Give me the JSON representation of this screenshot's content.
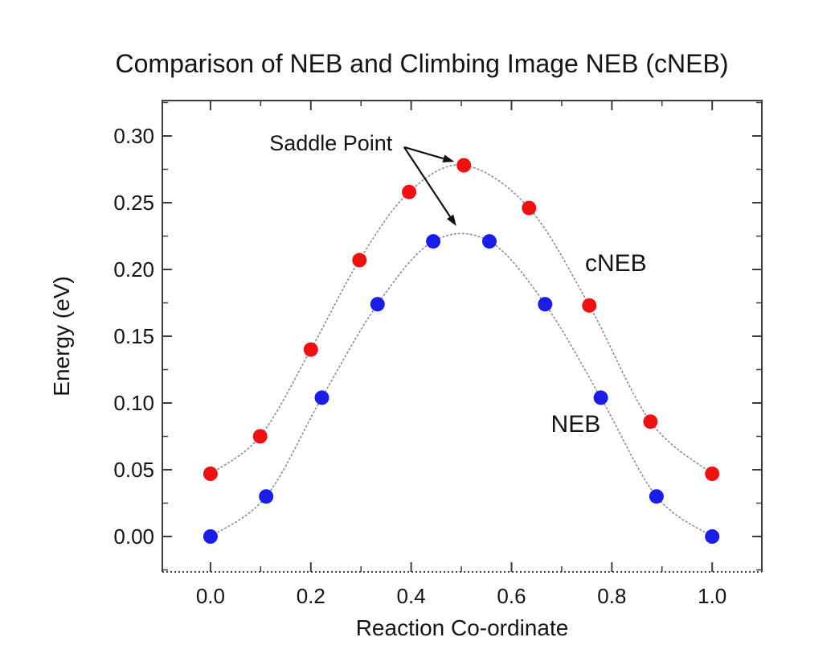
{
  "page": {
    "background": "#ffffff"
  },
  "chart_data": {
    "type": "scatter",
    "title": "Comparison of NEB and Climbing Image NEB (cNEB)",
    "xlabel": "Reaction Co-ordinate",
    "ylabel": "Energy (eV)",
    "grid": false,
    "legend_position": "inline-labels",
    "xlim": [
      -0.096,
      1.099
    ],
    "ylim": [
      -0.0265,
      0.3265
    ],
    "x_major_ticks": [
      0.0,
      0.2,
      0.4,
      0.6,
      0.8,
      1.0
    ],
    "x_tick_labels": [
      "0.0",
      "0.2",
      "0.4",
      "0.6",
      "0.8",
      "1.0"
    ],
    "x_minor_ticks": [
      0.1,
      0.3,
      0.5,
      0.7,
      0.9
    ],
    "y_major_ticks": [
      0.0,
      0.05,
      0.1,
      0.15,
      0.2,
      0.25,
      0.3
    ],
    "y_tick_labels": [
      "0.00",
      "0.05",
      "0.10",
      "0.15",
      "0.20",
      "0.25",
      "0.30"
    ],
    "y_minor_ticks": [
      -0.025,
      0.025,
      0.075,
      0.125,
      0.175,
      0.225,
      0.275,
      0.325
    ],
    "frame_color": "#3d3d3d",
    "curve_color": "#8f8f8f",
    "series": [
      {
        "name": "cNEB",
        "label": "cNEB",
        "label_pos": [
          0.808,
          0.2048
        ],
        "marker_color": "#ee1111",
        "marker_radius": 9,
        "x": [
          0.0,
          0.099,
          0.2,
          0.297,
          0.396,
          0.505,
          0.635,
          0.755,
          0.877,
          1.0
        ],
        "y": [
          0.047,
          0.075,
          0.14,
          0.207,
          0.258,
          0.278,
          0.246,
          0.173,
          0.086,
          0.047
        ]
      },
      {
        "name": "NEB",
        "label": "NEB",
        "label_pos": [
          0.728,
          0.0843
        ],
        "marker_color": "#1c1ce8",
        "marker_radius": 9,
        "x": [
          0.0,
          0.111,
          0.222,
          0.333,
          0.444,
          0.556,
          0.667,
          0.778,
          0.889,
          1.0
        ],
        "y": [
          0.0,
          0.03,
          0.104,
          0.174,
          0.221,
          0.221,
          0.174,
          0.104,
          0.03,
          0.0
        ]
      }
    ],
    "annotation": {
      "text": "Saddle Point",
      "text_pos": [
        0.24,
        0.2946
      ],
      "arrow_origin": [
        0.386,
        0.2916
      ],
      "arrow_tips": [
        [
          0.486,
          0.2807
        ],
        [
          0.49,
          0.2325
        ]
      ],
      "arrow_color": "#111111"
    }
  }
}
